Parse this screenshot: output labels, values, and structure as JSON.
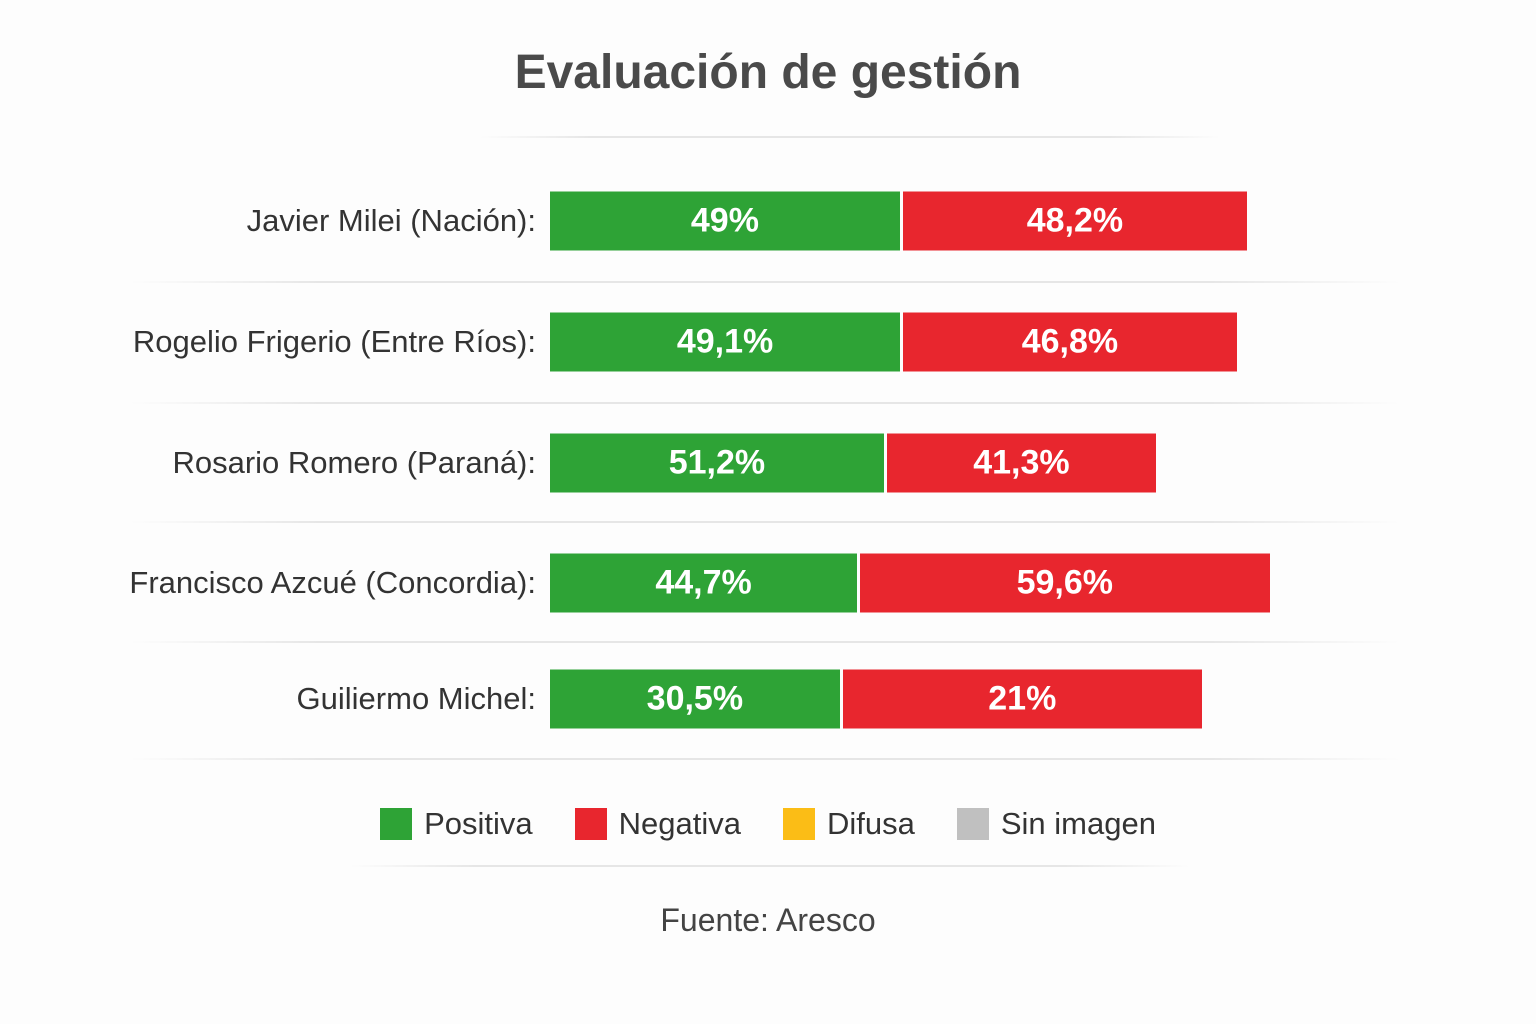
{
  "chart_data": {
    "type": "bar",
    "orientation": "horizontal-stacked",
    "title": "Evaluación de gestión",
    "categories": [
      "Javier Milei (Nación):",
      "Rogelio Frigerio (Entre Ríos):",
      "Rosario Romero (Paraná):",
      "Francisco Azcué (Concordia):",
      "Guiliermo Michel:"
    ],
    "series": [
      {
        "name": "Positiva",
        "color": "#2ea336",
        "values": [
          49,
          49.1,
          51.2,
          44.7,
          30.5
        ],
        "labels": [
          "49%",
          "49,1%",
          "51,2%",
          "44,7%",
          "30,5%"
        ]
      },
      {
        "name": "Negativa",
        "color": "#e8262e",
        "values": [
          48.2,
          46.8,
          41.3,
          59.6,
          21
        ],
        "labels": [
          "48,2%",
          "46,8%",
          "41,3%",
          "59,6%",
          "21%"
        ]
      }
    ],
    "legend": [
      {
        "name": "Positiva",
        "color": "#2ea336"
      },
      {
        "name": "Negativa",
        "color": "#e8262e"
      },
      {
        "name": "Difusa",
        "color": "#fbbd16"
      },
      {
        "name": "Sin imagen",
        "color": "#c0c0c0"
      }
    ],
    "legend_position": "bottom",
    "source": "Fuente: Aresco",
    "grid": false
  }
}
